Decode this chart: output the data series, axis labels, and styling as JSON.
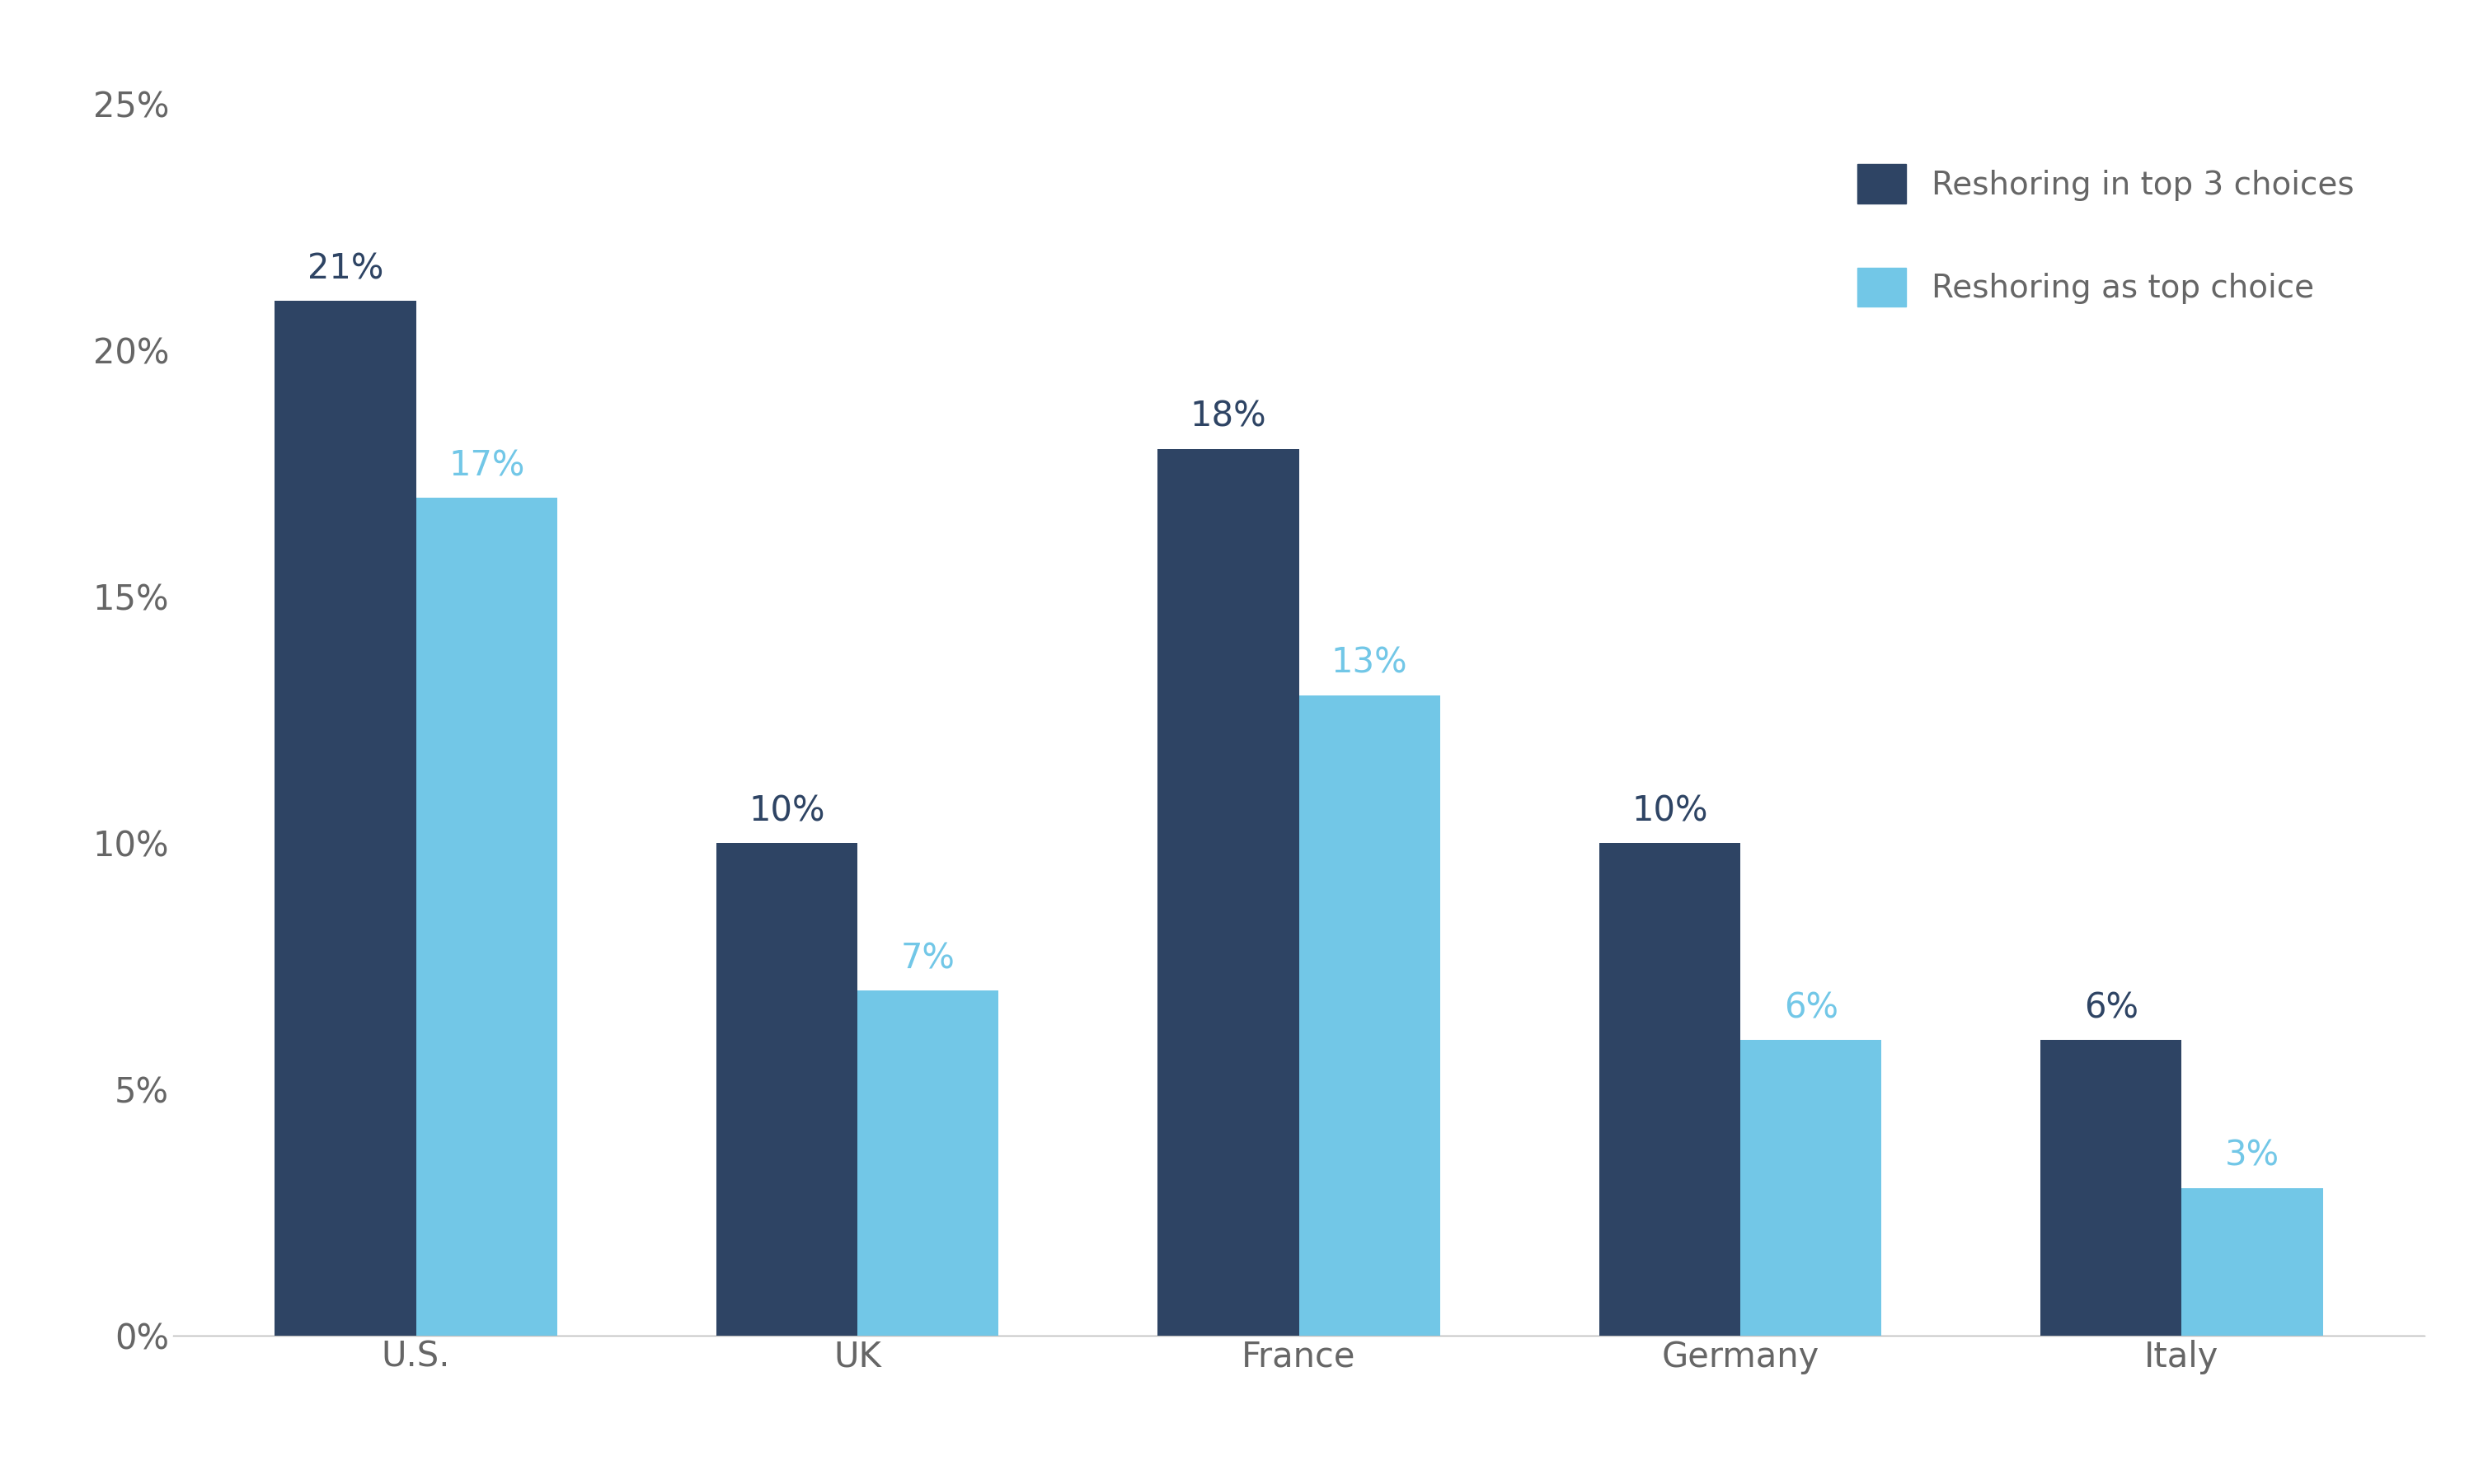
{
  "categories": [
    "U.S.",
    "UK",
    "France",
    "Germany",
    "Italy"
  ],
  "series1_values": [
    21,
    10,
    18,
    10,
    6
  ],
  "series2_values": [
    17,
    7,
    13,
    6,
    3
  ],
  "series1_label": "Reshoring in top 3 choices",
  "series2_label": "Reshoring as top choice",
  "series1_color": "#2E4464",
  "series2_color": "#72C7E7",
  "bar_width": 0.32,
  "ylim": [
    0,
    25
  ],
  "yticks": [
    0,
    5,
    10,
    15,
    20,
    25
  ],
  "ytick_labels": [
    "0%",
    "5%",
    "10%",
    "15%",
    "20%",
    "25%"
  ],
  "label_color_dark": "#2E4464",
  "label_color_light": "#72C7E7",
  "background_color": "#ffffff",
  "tick_fontsize": 30,
  "legend_fontsize": 28,
  "bar_label_fontsize": 30,
  "tick_color": "#666666"
}
